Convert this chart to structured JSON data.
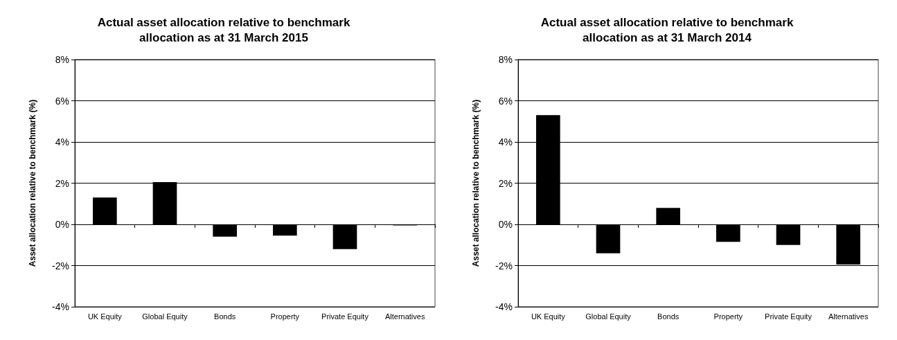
{
  "chart_data": [
    {
      "type": "bar",
      "title": "Actual asset allocation relative to benchmark\nallocation as at 31 March 2015",
      "ylabel": "Asset allocation relative to benchmark (%)",
      "categories": [
        "UK Equity",
        "Global Equity",
        "Bonds",
        "Property",
        "Private Equity",
        "Alternatives"
      ],
      "values": [
        1.3,
        2.05,
        -0.6,
        -0.55,
        -1.2,
        -0.05
      ],
      "color": "#000000",
      "ylim": [
        -4,
        8
      ],
      "yticks": [
        {
          "value": -4,
          "label": "-4%"
        },
        {
          "value": -2,
          "label": "-2%"
        },
        {
          "value": 0,
          "label": "0%"
        },
        {
          "value": 2,
          "label": "2%"
        },
        {
          "value": 4,
          "label": "4%"
        },
        {
          "value": 6,
          "label": "6%"
        },
        {
          "value": 8,
          "label": "8%"
        }
      ],
      "grid": "y"
    },
    {
      "type": "bar",
      "title": "Actual asset allocation relative to benchmark\nallocation as at 31 March 2014",
      "ylabel": "Asset allocation relative to benchmark (%)",
      "categories": [
        "UK Equity",
        "Global Equity",
        "Bonds",
        "Property",
        "Private Equity",
        "Alternatives"
      ],
      "values": [
        5.3,
        -1.4,
        0.8,
        -0.85,
        -1.0,
        -1.95
      ],
      "color": "#000000",
      "ylim": [
        -4,
        8
      ],
      "yticks": [
        {
          "value": -4,
          "label": "-4%"
        },
        {
          "value": -2,
          "label": "-2%"
        },
        {
          "value": 0,
          "label": "0%"
        },
        {
          "value": 2,
          "label": "2%"
        },
        {
          "value": 4,
          "label": "4%"
        },
        {
          "value": 6,
          "label": "6%"
        },
        {
          "value": 8,
          "label": "8%"
        }
      ],
      "grid": "y"
    }
  ]
}
